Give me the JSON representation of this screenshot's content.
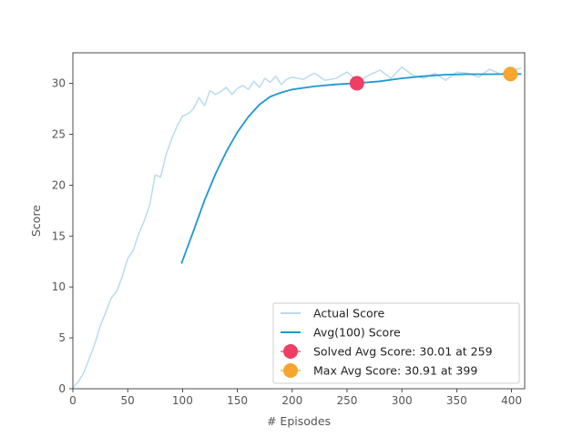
{
  "chart_data": {
    "type": "line",
    "title": "",
    "xlabel": "# Episodes",
    "ylabel": "Score",
    "xlim": [
      0,
      412
    ],
    "ylim": [
      0,
      33
    ],
    "grid": false,
    "legend_position": "lower-right",
    "xticks": [
      0,
      50,
      100,
      150,
      200,
      250,
      300,
      350,
      400
    ],
    "yticks": [
      0,
      5,
      10,
      15,
      20,
      25,
      30
    ],
    "series": [
      {
        "name": "Actual Score",
        "color": "#b8dcf0",
        "x": [
          0,
          5,
          10,
          15,
          20,
          25,
          30,
          35,
          40,
          45,
          50,
          55,
          60,
          65,
          70,
          75,
          80,
          85,
          90,
          95,
          100,
          105,
          110,
          115,
          120,
          125,
          130,
          135,
          140,
          145,
          150,
          155,
          160,
          165,
          170,
          175,
          180,
          185,
          190,
          195,
          200,
          210,
          220,
          230,
          240,
          250,
          260,
          270,
          280,
          290,
          300,
          310,
          320,
          330,
          340,
          350,
          360,
          370,
          380,
          390,
          400,
          409
        ],
        "y": [
          0.1,
          0.7,
          1.6,
          3.0,
          4.4,
          6.2,
          7.5,
          8.9,
          9.6,
          11.0,
          12.8,
          13.6,
          15.2,
          16.5,
          18.0,
          21.0,
          20.8,
          23.0,
          24.5,
          25.8,
          26.8,
          27.0,
          27.5,
          28.6,
          27.8,
          29.3,
          28.9,
          29.2,
          29.6,
          28.9,
          29.5,
          29.8,
          29.4,
          30.2,
          29.6,
          30.5,
          30.1,
          30.7,
          29.9,
          30.4,
          30.6,
          30.4,
          31.0,
          30.3,
          30.5,
          31.1,
          30.2,
          30.8,
          31.3,
          30.5,
          31.6,
          30.8,
          30.5,
          31.0,
          30.3,
          31.1,
          31.0,
          30.6,
          31.4,
          30.9,
          31.3,
          31.5
        ]
      },
      {
        "name": "Avg(100) Score",
        "color": "#1f97d4",
        "x": [
          99,
          110,
          120,
          130,
          140,
          150,
          160,
          170,
          180,
          190,
          200,
          220,
          240,
          259,
          280,
          300,
          320,
          340,
          360,
          380,
          399,
          409
        ],
        "y": [
          12.3,
          15.5,
          18.5,
          21.1,
          23.3,
          25.2,
          26.7,
          27.9,
          28.7,
          29.1,
          29.4,
          29.7,
          29.9,
          30.01,
          30.2,
          30.5,
          30.7,
          30.85,
          30.9,
          30.9,
          30.91,
          30.91
        ]
      }
    ],
    "markers": [
      {
        "name": "Solved Avg Score: 30.01 at 259",
        "x": 259,
        "y": 30.01,
        "color": "#ef3e64"
      },
      {
        "name": "Max Avg Score: 30.91 at 399",
        "x": 399,
        "y": 30.91,
        "color": "#f6a62c"
      }
    ]
  }
}
